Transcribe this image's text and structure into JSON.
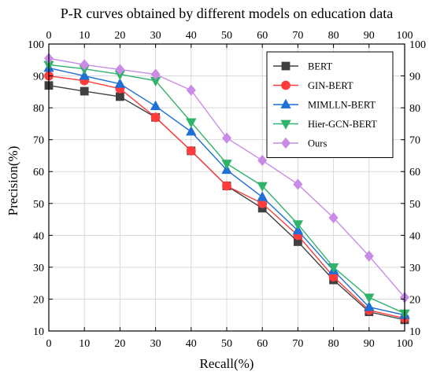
{
  "chart_data": {
    "type": "line",
    "title": "P-R curves obtained by different models on education data",
    "xlabel": "Recall(%)",
    "ylabel": "Precision(%)",
    "x": [
      0,
      10,
      20,
      30,
      40,
      50,
      60,
      70,
      80,
      90,
      100
    ],
    "xlim": [
      0,
      100
    ],
    "ylim": [
      10,
      100
    ],
    "xticks": [
      0,
      10,
      20,
      30,
      40,
      50,
      60,
      70,
      80,
      90,
      100
    ],
    "yticks": [
      10,
      20,
      30,
      40,
      50,
      60,
      70,
      80,
      90,
      100
    ],
    "grid": true,
    "legend_position": "top-right",
    "series": [
      {
        "name": "BERT",
        "color": "#404040",
        "marker": "square",
        "values": [
          87,
          85.2,
          83.5,
          77,
          66.5,
          55.5,
          48.5,
          38,
          26,
          16,
          13.5
        ]
      },
      {
        "name": "GIN-BERT",
        "color": "#ff3b3b",
        "marker": "circle",
        "values": [
          90,
          88.5,
          86,
          77,
          66.5,
          55.5,
          50,
          40,
          27,
          16.5,
          14
        ]
      },
      {
        "name": "MIMLLN-BERT",
        "color": "#1f6fd6",
        "marker": "triangle-up",
        "values": [
          92.5,
          90,
          87.5,
          80.5,
          72.5,
          60.5,
          52,
          41.5,
          29,
          17.5,
          15
        ]
      },
      {
        "name": "Hier-GCN-BERT",
        "color": "#2fb36b",
        "marker": "triangle-down",
        "values": [
          93.5,
          92.2,
          90.5,
          88.5,
          75.5,
          62.5,
          55.5,
          43.5,
          30,
          20.5,
          15.5
        ]
      },
      {
        "name": "Ours",
        "color": "#c98be6",
        "marker": "diamond",
        "values": [
          95.5,
          93.5,
          92,
          90.5,
          85.5,
          70.5,
          63.5,
          56,
          45.5,
          33.5,
          20.5
        ]
      }
    ]
  }
}
